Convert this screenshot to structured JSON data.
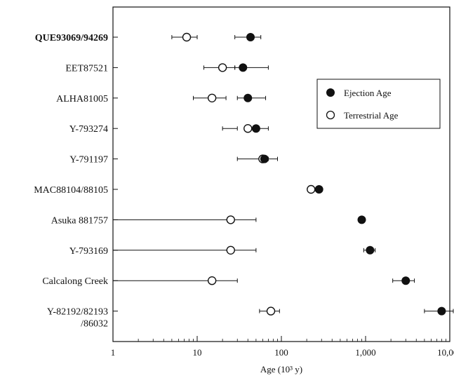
{
  "chart_data": {
    "type": "scatter",
    "x_scale": "log",
    "xlim": [
      1,
      10000
    ],
    "x_ticks": [
      {
        "value": 1,
        "label": "1"
      },
      {
        "value": 10,
        "label": "10"
      },
      {
        "value": 100,
        "label": "100"
      },
      {
        "value": 1000,
        "label": "1,000"
      },
      {
        "value": 10000,
        "label": "10,000"
      }
    ],
    "xlabel": "Age (10³ y)",
    "legend": {
      "position": "top-right",
      "entries": [
        {
          "series": "ejection",
          "label": "Ejection Age",
          "marker": "filled-circle"
        },
        {
          "series": "terrestrial",
          "label": "Terrestrial Age",
          "marker": "open-circle"
        }
      ]
    },
    "meteorites": [
      {
        "name": [
          "QUE93069/94269"
        ],
        "bold": true,
        "terrestrial": {
          "value": 7.5,
          "low": 5,
          "high": 10
        },
        "ejection": {
          "value": 43,
          "low": 28,
          "high": 57
        }
      },
      {
        "name": [
          "EET87521"
        ],
        "bold": false,
        "terrestrial": {
          "value": 20,
          "low": 12,
          "high": 28
        },
        "ejection": {
          "value": 35,
          "low": 28,
          "high": 70
        }
      },
      {
        "name": [
          "ALHA81005"
        ],
        "bold": false,
        "terrestrial": {
          "value": 15,
          "low": 9,
          "high": 22
        },
        "ejection": {
          "value": 40,
          "low": 30,
          "high": 65
        }
      },
      {
        "name": [
          "Y-793274"
        ],
        "bold": false,
        "terrestrial": {
          "value": 40,
          "low": 20,
          "high": 30
        },
        "ejection": {
          "value": 50,
          "low": 38,
          "high": 70
        }
      },
      {
        "name": [
          "Y-791197"
        ],
        "bold": false,
        "terrestrial": {
          "value": 60,
          "low": 30,
          "high": 70
        },
        "ejection": {
          "value": 63,
          "low": 55,
          "high": 90
        }
      },
      {
        "name": [
          "MAC88104/88105"
        ],
        "bold": false,
        "terrestrial": {
          "value": 225,
          "low": 225,
          "high": 225
        },
        "ejection": {
          "value": 280,
          "low": 270,
          "high": 295
        }
      },
      {
        "name": [
          "Asuka 881757"
        ],
        "bold": false,
        "terrestrial": {
          "value": 25,
          "low": 1,
          "high": 50
        },
        "ejection": {
          "value": 900,
          "low": 880,
          "high": 920
        }
      },
      {
        "name": [
          "Y-793169"
        ],
        "bold": false,
        "terrestrial": {
          "value": 25,
          "low": 1,
          "high": 50
        },
        "ejection": {
          "value": 1130,
          "low": 950,
          "high": 1300
        }
      },
      {
        "name": [
          "Calcalong Creek"
        ],
        "bold": false,
        "terrestrial": {
          "value": 15,
          "low": 1,
          "high": 30
        },
        "ejection": {
          "value": 3000,
          "low": 2100,
          "high": 3800
        }
      },
      {
        "name": [
          "Y-82192/82193",
          "/86032"
        ],
        "bold": false,
        "terrestrial": {
          "value": 75,
          "low": 55,
          "high": 95
        },
        "ejection": {
          "value": 8000,
          "low": 5000,
          "high": 11000
        }
      }
    ]
  }
}
